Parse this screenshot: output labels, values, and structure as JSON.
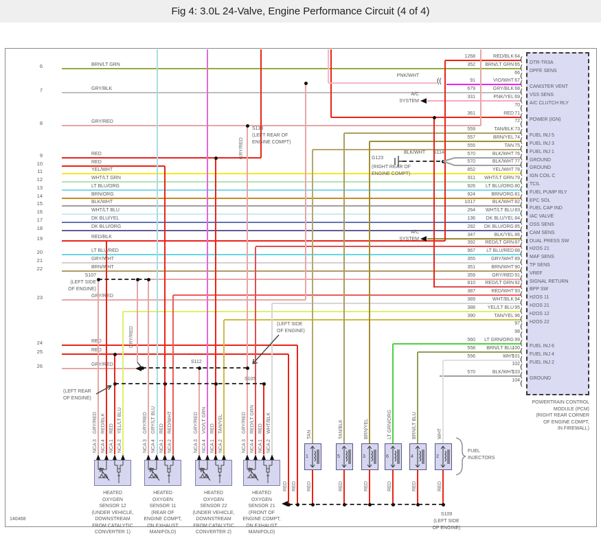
{
  "title": "Fig 4: 3.0L 24-Valve, Engine Performance Circuit (4 of 4)",
  "doc_number": "140468",
  "pcm": {
    "label_lines": [
      "POWERTRAIN CONTROL",
      "MODULE (PCM)",
      "(RIGHT REAR CORNER",
      "OF ENGINE COMPT,",
      "IN FIREWALL)"
    ],
    "pins": [
      {
        "pin": 64,
        "circuit": "1268",
        "color": "RED/BLK",
        "function": "DTR-TR3A"
      },
      {
        "pin": 65,
        "circuit": "352",
        "color": "BRN/LT GRN",
        "function": "DPFE SENS"
      },
      {
        "pin": 66,
        "circuit": null,
        "color": null,
        "function": null
      },
      {
        "pin": 67,
        "circuit": "91",
        "color": "VIO/WHT",
        "function": "CANISTER VENT"
      },
      {
        "pin": 68,
        "circuit": "679",
        "color": "GRY/BLK",
        "function": "VSS SENS"
      },
      {
        "pin": 69,
        "circuit": "331",
        "color": "PNK/YEL",
        "function": "A/C CLUTCH RLY"
      },
      {
        "pin": 70,
        "circuit": null,
        "color": null,
        "function": null
      },
      {
        "pin": 71,
        "circuit": "361",
        "color": "RED",
        "function": "POWER (IGN)"
      },
      {
        "pin": 72,
        "circuit": null,
        "color": null,
        "function": null
      },
      {
        "pin": 73,
        "circuit": "559",
        "color": "TAN/BLK",
        "function": "FUEL INJ 5"
      },
      {
        "pin": 74,
        "circuit": "557",
        "color": "BRN/YEL",
        "function": "FUEL INJ 3"
      },
      {
        "pin": 75,
        "circuit": "555",
        "color": "TAN",
        "function": "FUEL INJ 1"
      },
      {
        "pin": 76,
        "circuit": "570",
        "color": "BLK/WHT",
        "function": "GROUND"
      },
      {
        "pin": 77,
        "circuit": "570",
        "color": "BLK/WHT",
        "function": "GROUND"
      },
      {
        "pin": 78,
        "circuit": "852",
        "color": "YEL/WHT",
        "function": "IGN COIL C"
      },
      {
        "pin": 79,
        "circuit": "911",
        "color": "WHT/LT GRN",
        "function": "TCIL"
      },
      {
        "pin": 80,
        "circuit": "926",
        "color": "LT BLU/ORG",
        "function": "FUEL PUMP RLY"
      },
      {
        "pin": 81,
        "circuit": "924",
        "color": "BRN/ORG",
        "function": "EPC SOL"
      },
      {
        "pin": 82,
        "circuit": "1017",
        "color": "BLK/WHT",
        "function": "FUEL CAP IND"
      },
      {
        "pin": 83,
        "circuit": "264",
        "color": "WHT/LT BLU",
        "function": "IAC VALVE"
      },
      {
        "pin": 84,
        "circuit": "136",
        "color": "DK BLU/YEL",
        "function": "OSS SENS"
      },
      {
        "pin": 85,
        "circuit": "282",
        "color": "DK BLU/ORG",
        "function": "CAM SENS"
      },
      {
        "pin": 86,
        "circuit": "347",
        "color": "BLK/YEL",
        "function": "DUAL PRESS SW"
      },
      {
        "pin": 87,
        "circuit": "392",
        "color": "RED/LT GRN",
        "function": "H2OS 21"
      },
      {
        "pin": 88,
        "circuit": "967",
        "color": "LT BLU/RED",
        "function": "MAF SENS"
      },
      {
        "pin": 89,
        "circuit": "355",
        "color": "GRY/WHT",
        "function": "TP SENS"
      },
      {
        "pin": 90,
        "circuit": "351",
        "color": "BRN/WHT",
        "function": "VREF"
      },
      {
        "pin": 91,
        "circuit": "359",
        "color": "GRY/RED",
        "function": "SIGNAL RETURN"
      },
      {
        "pin": 92,
        "circuit": "810",
        "color": "RED/LT GRN",
        "function": "BPP SW"
      },
      {
        "pin": 93,
        "circuit": "387",
        "color": "RED/WHT",
        "function": "H2OS 11"
      },
      {
        "pin": 94,
        "circuit": "389",
        "color": "WHT/BLK",
        "function": "H2OS 21"
      },
      {
        "pin": 95,
        "circuit": "388",
        "color": "YEL/LT BLU",
        "function": "H2OS 12"
      },
      {
        "pin": 96,
        "circuit": "390",
        "color": "TAN/YEL",
        "function": "H2OS 22"
      },
      {
        "pin": 97,
        "circuit": null,
        "color": null,
        "function": null
      },
      {
        "pin": 98,
        "circuit": null,
        "color": null,
        "function": null
      },
      {
        "pin": 99,
        "circuit": "560",
        "color": "LT GRN/ORG",
        "function": "FUEL INJ 6"
      },
      {
        "pin": 100,
        "circuit": "558",
        "color": "BRN/LT BLU",
        "function": "FUEL INJ 4"
      },
      {
        "pin": 101,
        "circuit": "556",
        "color": "WHT",
        "function": "FUEL INJ 2"
      },
      {
        "pin": 102,
        "circuit": null,
        "color": null,
        "function": null
      },
      {
        "pin": 103,
        "circuit": "570",
        "color": "BLK/WHT",
        "function": "GROUND"
      },
      {
        "pin": 104,
        "circuit": null,
        "color": null,
        "function": null
      }
    ]
  },
  "left_wires": [
    {
      "num": "6",
      "color": "BRN/LT GRN"
    },
    {
      "num": "7",
      "color": "GRY/BLK"
    },
    {
      "num": "8",
      "color": "GRY/RED"
    },
    {
      "num": "9",
      "color": "RED"
    },
    {
      "num": "10",
      "color": "RED"
    },
    {
      "num": "11",
      "color": "YEL/WHT"
    },
    {
      "num": "12",
      "color": "WHT/LT GRN"
    },
    {
      "num": "13",
      "color": "LT BLU/ORG"
    },
    {
      "num": "14",
      "color": "BRN/ORG"
    },
    {
      "num": "15",
      "color": "BLK/WHT"
    },
    {
      "num": "16",
      "color": "WHT/LT BLU"
    },
    {
      "num": "17",
      "color": "DK BLU/YEL"
    },
    {
      "num": "18",
      "color": "DK BLU/ORG"
    },
    {
      "num": "19",
      "color": "RED/BLK"
    },
    {
      "num": "20",
      "color": "LT BLU/RED"
    },
    {
      "num": "21",
      "color": "GRY/WHT"
    },
    {
      "num": "22",
      "color": "BRN/WHT"
    },
    {
      "num": "23",
      "color": "GRY/RED"
    },
    {
      "num": "24",
      "color": "RED"
    },
    {
      "num": "25",
      "color": "RED"
    },
    {
      "num": "26",
      "color": "GRY/RED"
    }
  ],
  "sensors": [
    {
      "pins": [
        {
          "n": "3",
          "color": "GRY/RED"
        },
        {
          "n": "4",
          "color": "RED/BLK"
        },
        {
          "n": "1",
          "color": "RED"
        },
        {
          "n": "2",
          "color": "YEL/LT BLU"
        }
      ],
      "name": [
        "HEATED",
        "OXYGEN",
        "SENSOR 12",
        "(UNDER VEHICLE,",
        "DOWNSTREAM",
        "FROM CATALYTIC",
        "CONVERTER 1)"
      ]
    },
    {
      "pins": [
        {
          "n": "3",
          "color": "GRY/RED"
        },
        {
          "n": "4",
          "color": "GRY/LT BLU"
        },
        {
          "n": "1",
          "color": "RED"
        },
        {
          "n": "2",
          "color": "RED/WHT"
        }
      ],
      "name": [
        "HEATED",
        "OXYGEN",
        "SENSOR 11",
        "(REAR OF",
        "ENGINE COMPT,",
        "ON EXHAUST",
        "MANIFOLD)"
      ]
    },
    {
      "pins": [
        {
          "n": "3",
          "color": "GRY/RED"
        },
        {
          "n": "4",
          "color": "VIO/LT GRN"
        },
        {
          "n": "1",
          "color": "RED"
        },
        {
          "n": "2",
          "color": "TAN/YEL"
        }
      ],
      "name": [
        "HEATED",
        "OXYGEN",
        "SENSOR 22",
        "(UNDER VEHICLE,",
        "DOWNSTREAM",
        "FROM CATALYTIC",
        "CONVERTER 2)"
      ]
    },
    {
      "pins": [
        {
          "n": "3",
          "color": "GRY/RED"
        },
        {
          "n": "4",
          "color": "RED/LT GRN"
        },
        {
          "n": "1",
          "color": "RED"
        },
        {
          "n": "2",
          "color": "WHT/BLK"
        }
      ],
      "name": [
        "HEATED",
        "OXYGEN",
        "SENSOR 21",
        "(FRONT OF",
        "ENGINE COMPT,",
        "ON EXHAUST",
        "MANIFOLD)"
      ]
    }
  ],
  "injectors": {
    "items": [
      {
        "num": "1",
        "color": "TAN"
      },
      {
        "num": "5",
        "color": "TAN/BLK"
      },
      {
        "num": "3",
        "color": "BRN/YEL"
      },
      {
        "num": "6",
        "color": "LT GRN/ORG"
      },
      {
        "num": "4",
        "color": "BRN/LT BLU"
      },
      {
        "num": "2",
        "color": "WHT"
      }
    ],
    "supply_color": "RED",
    "group_label": [
      "FUEL",
      "INJECTORS"
    ]
  },
  "annotations": {
    "nca": "NCA",
    "red": "RED",
    "gry_red": "GRY/RED",
    "pnk_wht": "PNK/WHT",
    "connector": "((",
    "ac_system": [
      "A/C",
      "SYSTEM"
    ],
    "s133": [
      "S133",
      "(LEFT REAR OF",
      "ENGINE COMPT)"
    ],
    "g123": {
      "name": "G123",
      "wire": "BLK/WHT",
      "splice": "S114",
      "loc": [
        "(RIGHT REAR OF",
        "ENGINE COMPT)"
      ]
    },
    "s107": [
      "S107",
      "(LEFT SIDE",
      "OF ENGINE)"
    ],
    "s112": "S112",
    "left_side_engine": [
      "(LEFT SIDE",
      "OF ENGINE)"
    ],
    "s105": "S105",
    "left_rear_engine": [
      "(LEFT REAR",
      "OF ENGINE)"
    ],
    "s109": [
      "S109",
      "(LEFT SIDE",
      "OF ENGINE)"
    ]
  },
  "wire_colors": {
    "RED": "#e82318",
    "RED/BLK": "#e82318",
    "GRY/RED": "#e7a6a6",
    "BRN/LT GRN": "#8fae3a",
    "GRY/BLK": "#bdbdbd",
    "VIO/WHT": "#ee22ee",
    "PNK/YEL": "#f5aabe",
    "PNK/WHT": "#f7b6c6",
    "TAN/BLK": "#ac9d60",
    "BRN/YEL": "#a28d2e",
    "TAN": "#b5a66a",
    "BLK/WHT": "#9e9e9e",
    "YEL/WHT": "#f2ea1f",
    "WHT/LT GRN": "#b7e2ae",
    "LT BLU/ORG": "#7cd9e9",
    "BRN/ORG": "#c28a2c",
    "WHT/LT BLU": "#c9ecf2",
    "DK BLU/YEL": "#6173b5",
    "DK BLU/ORG": "#5c5c94",
    "BLK/YEL": "#97862f",
    "RED/LT GRN": "#e34d4d",
    "LT BLU/RED": "#66d6e2",
    "GRY/WHT": "#d2d2d2",
    "BRN/WHT": "#b09a68",
    "RED/WHT": "#ea5a5a",
    "WHT/BLK": "#d6d6d6",
    "YEL/LT BLU": "#dff06a",
    "TAN/YEL": "#cdbc45",
    "LT GRN/ORG": "#47d33b",
    "BRN/LT BLU": "#8f9e57",
    "WHT": "#e0e0e0",
    "GRY/LT BLU": "#a9dde6",
    "VIO/LT GRN": "#e06ad8"
  }
}
